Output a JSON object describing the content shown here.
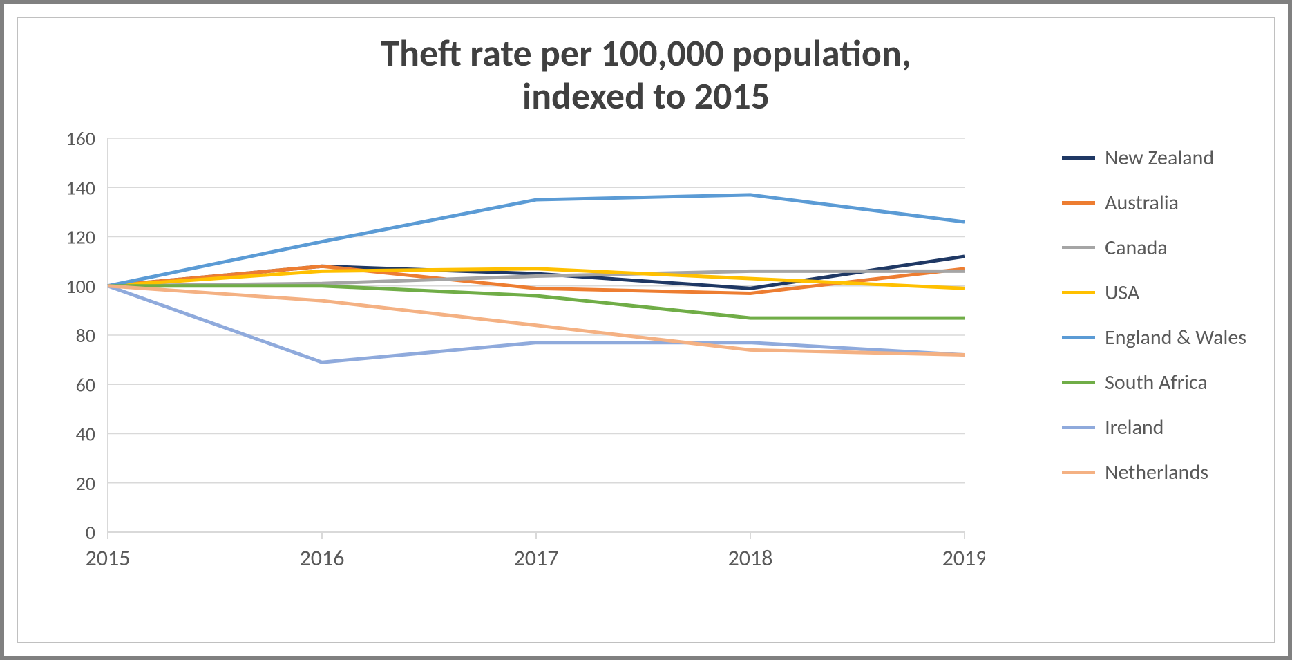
{
  "chart": {
    "type": "line",
    "title_line1": "Theft rate per 100,000 population,",
    "title_line2": "indexed to 2015",
    "title_fontsize": 54,
    "title_color": "#404040",
    "background_color": "#ffffff",
    "outer_border_color": "#808080",
    "inner_border_color": "#c0c0c0",
    "grid_color": "#d9d9d9",
    "axis_label_color": "#595959",
    "x": {
      "categories": [
        "2015",
        "2016",
        "2017",
        "2018",
        "2019"
      ],
      "tick_fontsize": 32
    },
    "y": {
      "min": 0,
      "max": 160,
      "step": 20,
      "tick_fontsize": 28
    },
    "series": [
      {
        "name": "New Zealand",
        "color": "#1f3864",
        "values": [
          100,
          108,
          105,
          99,
          112
        ]
      },
      {
        "name": "Australia",
        "color": "#ed7d31",
        "values": [
          100,
          108,
          99,
          97,
          107
        ]
      },
      {
        "name": "Canada",
        "color": "#a5a5a5",
        "values": [
          100,
          101,
          104,
          106,
          106
        ]
      },
      {
        "name": "USA",
        "color": "#ffc000",
        "values": [
          100,
          106,
          107,
          103,
          99
        ]
      },
      {
        "name": "England & Wales",
        "color": "#5b9bd5",
        "values": [
          100,
          118,
          135,
          137,
          126
        ]
      },
      {
        "name": "South Africa",
        "color": "#70ad47",
        "values": [
          100,
          100,
          96,
          87,
          87
        ]
      },
      {
        "name": "Ireland",
        "color": "#8faadc",
        "values": [
          100,
          69,
          77,
          77,
          72
        ]
      },
      {
        "name": "Netherlands",
        "color": "#f4b183",
        "values": [
          100,
          94,
          84,
          74,
          72
        ]
      }
    ],
    "legend_fontsize": 30,
    "line_width": 5
  }
}
